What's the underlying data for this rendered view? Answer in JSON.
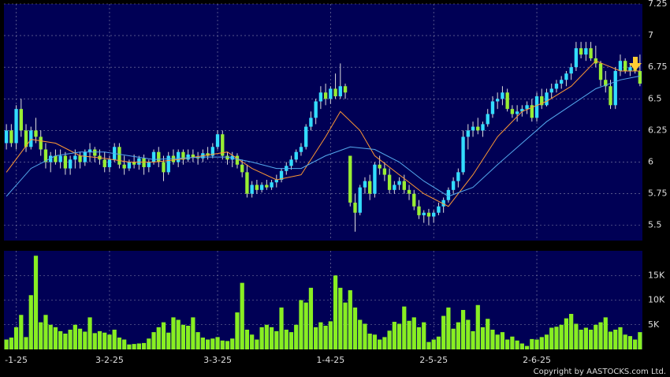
{
  "chart_data": [
    {
      "type": "candlestick",
      "up_color": "#33ddff",
      "down_color": "#99ee33",
      "wick_color": "#dddddd",
      "values": [
        [
          6.15,
          6.3,
          6.1,
          6.25
        ],
        [
          6.25,
          6.3,
          6.12,
          6.15
        ],
        [
          6.15,
          6.45,
          6.1,
          6.42
        ],
        [
          6.42,
          6.5,
          6.2,
          6.25
        ],
        [
          6.25,
          6.3,
          6.08,
          6.12
        ],
        [
          6.12,
          6.28,
          6.1,
          6.25
        ],
        [
          6.25,
          6.35,
          6.15,
          6.2
        ],
        [
          6.2,
          6.25,
          6.05,
          6.1
        ],
        [
          6.1,
          6.15,
          5.95,
          6.0
        ],
        [
          6.0,
          6.08,
          5.92,
          6.05
        ],
        [
          6.05,
          6.1,
          5.98,
          6.0
        ],
        [
          6.0,
          6.1,
          5.95,
          6.05
        ],
        [
          6.05,
          6.08,
          5.9,
          5.95
        ],
        [
          5.95,
          6.05,
          5.9,
          6.02
        ],
        [
          6.02,
          6.1,
          5.95,
          6.05
        ],
        [
          6.05,
          6.08,
          5.95,
          6.0
        ],
        [
          6.0,
          6.1,
          5.97,
          6.08
        ],
        [
          6.08,
          6.15,
          6.0,
          6.1
        ],
        [
          6.1,
          6.12,
          6.0,
          6.05
        ],
        [
          6.05,
          6.1,
          5.98,
          6.02
        ],
        [
          6.02,
          6.08,
          5.92,
          5.96
        ],
        [
          5.96,
          6.05,
          5.92,
          6.02
        ],
        [
          6.02,
          6.15,
          6.0,
          6.12
        ],
        [
          6.12,
          6.15,
          5.95,
          5.98
        ],
        [
          5.98,
          6.05,
          5.9,
          5.95
        ],
        [
          5.95,
          6.02,
          5.93,
          6.0
        ],
        [
          6.0,
          6.06,
          5.95,
          5.98
        ],
        [
          5.98,
          6.05,
          5.94,
          6.03
        ],
        [
          6.03,
          6.06,
          5.9,
          5.96
        ],
        [
          5.96,
          6.02,
          5.92,
          6.0
        ],
        [
          6.0,
          6.1,
          5.98,
          6.08
        ],
        [
          6.08,
          6.12,
          5.96,
          6.0
        ],
        [
          6.0,
          6.05,
          5.85,
          5.92
        ],
        [
          5.92,
          6.08,
          5.9,
          6.05
        ],
        [
          6.05,
          6.1,
          5.98,
          6.0
        ],
        [
          6.0,
          6.1,
          5.96,
          6.08
        ],
        [
          6.08,
          6.1,
          5.98,
          6.02
        ],
        [
          6.02,
          6.1,
          6.0,
          6.06
        ],
        [
          6.06,
          6.1,
          6.0,
          6.04
        ],
        [
          6.04,
          6.08,
          5.98,
          6.03
        ],
        [
          6.03,
          6.1,
          6.0,
          6.07
        ],
        [
          6.07,
          6.12,
          6.02,
          6.05
        ],
        [
          6.05,
          6.15,
          6.03,
          6.12
        ],
        [
          6.12,
          6.25,
          6.1,
          6.22
        ],
        [
          6.22,
          6.25,
          6.02,
          6.05
        ],
        [
          6.05,
          6.08,
          5.98,
          6.02
        ],
        [
          6.02,
          6.08,
          5.96,
          6.05
        ],
        [
          6.05,
          6.07,
          5.95,
          5.98
        ],
        [
          5.98,
          6.02,
          5.88,
          5.92
        ],
        [
          5.92,
          5.98,
          5.72,
          5.75
        ],
        [
          5.75,
          5.85,
          5.72,
          5.82
        ],
        [
          5.82,
          5.86,
          5.75,
          5.78
        ],
        [
          5.78,
          5.84,
          5.76,
          5.82
        ],
        [
          5.82,
          5.86,
          5.78,
          5.8
        ],
        [
          5.8,
          5.86,
          5.78,
          5.84
        ],
        [
          5.84,
          5.9,
          5.8,
          5.86
        ],
        [
          5.86,
          5.95,
          5.84,
          5.93
        ],
        [
          5.93,
          6.0,
          5.9,
          5.97
        ],
        [
          5.97,
          6.05,
          5.94,
          6.02
        ],
        [
          6.02,
          6.1,
          6.0,
          6.08
        ],
        [
          6.08,
          6.15,
          6.05,
          6.12
        ],
        [
          6.12,
          6.3,
          6.1,
          6.28
        ],
        [
          6.28,
          6.4,
          6.25,
          6.35
        ],
        [
          6.35,
          6.5,
          6.3,
          6.48
        ],
        [
          6.48,
          6.6,
          6.42,
          6.55
        ],
        [
          6.55,
          6.62,
          6.45,
          6.5
        ],
        [
          6.5,
          6.6,
          6.46,
          6.58
        ],
        [
          6.58,
          6.7,
          6.5,
          6.52
        ],
        [
          6.52,
          6.78,
          6.5,
          6.6
        ],
        [
          6.6,
          6.62,
          6.5,
          6.55
        ],
        [
          6.05,
          6.05,
          5.65,
          5.68
        ],
        [
          5.68,
          5.75,
          5.45,
          5.6
        ],
        [
          5.6,
          5.82,
          5.58,
          5.8
        ],
        [
          5.8,
          5.88,
          5.75,
          5.85
        ],
        [
          5.85,
          5.9,
          5.7,
          5.75
        ],
        [
          5.75,
          6.0,
          5.72,
          5.98
        ],
        [
          5.98,
          6.05,
          5.9,
          5.95
        ],
        [
          5.95,
          6.0,
          5.85,
          5.9
        ],
        [
          5.9,
          5.95,
          5.75,
          5.78
        ],
        [
          5.78,
          5.85,
          5.75,
          5.82
        ],
        [
          5.82,
          5.88,
          5.78,
          5.85
        ],
        [
          5.85,
          5.9,
          5.75,
          5.78
        ],
        [
          5.78,
          5.82,
          5.7,
          5.75
        ],
        [
          5.75,
          5.78,
          5.62,
          5.65
        ],
        [
          5.65,
          5.7,
          5.55,
          5.58
        ],
        [
          5.58,
          5.62,
          5.52,
          5.6
        ],
        [
          5.6,
          5.63,
          5.5,
          5.57
        ],
        [
          5.57,
          5.62,
          5.52,
          5.6
        ],
        [
          5.6,
          5.68,
          5.58,
          5.65
        ],
        [
          5.65,
          5.72,
          5.6,
          5.7
        ],
        [
          5.7,
          5.8,
          5.68,
          5.78
        ],
        [
          5.78,
          5.88,
          5.75,
          5.85
        ],
        [
          5.85,
          5.95,
          5.8,
          5.92
        ],
        [
          5.92,
          6.25,
          5.9,
          6.2
        ],
        [
          6.2,
          6.3,
          6.1,
          6.25
        ],
        [
          6.25,
          6.32,
          6.2,
          6.28
        ],
        [
          6.28,
          6.35,
          6.22,
          6.25
        ],
        [
          6.25,
          6.32,
          6.2,
          6.3
        ],
        [
          6.3,
          6.42,
          6.28,
          6.38
        ],
        [
          6.38,
          6.52,
          6.35,
          6.48
        ],
        [
          6.48,
          6.55,
          6.42,
          6.5
        ],
        [
          6.5,
          6.6,
          6.45,
          6.55
        ],
        [
          6.55,
          6.58,
          6.4,
          6.42
        ],
        [
          6.42,
          6.45,
          6.35,
          6.38
        ],
        [
          6.38,
          6.45,
          6.32,
          6.4
        ],
        [
          6.4,
          6.45,
          6.36,
          6.42
        ],
        [
          6.42,
          6.48,
          6.38,
          6.45
        ],
        [
          6.45,
          6.5,
          6.32,
          6.35
        ],
        [
          6.35,
          6.55,
          6.32,
          6.52
        ],
        [
          6.52,
          6.58,
          6.42,
          6.45
        ],
        [
          6.45,
          6.58,
          6.44,
          6.55
        ],
        [
          6.55,
          6.62,
          6.5,
          6.58
        ],
        [
          6.58,
          6.65,
          6.55,
          6.62
        ],
        [
          6.62,
          6.68,
          6.58,
          6.65
        ],
        [
          6.65,
          6.72,
          6.6,
          6.7
        ],
        [
          6.7,
          6.78,
          6.65,
          6.75
        ],
        [
          6.75,
          6.95,
          6.72,
          6.9
        ],
        [
          6.9,
          6.95,
          6.82,
          6.85
        ],
        [
          6.85,
          6.95,
          6.8,
          6.9
        ],
        [
          6.9,
          6.95,
          6.8,
          6.82
        ],
        [
          6.82,
          6.92,
          6.75,
          6.78
        ],
        [
          6.78,
          6.8,
          6.6,
          6.65
        ],
        [
          6.65,
          6.72,
          6.55,
          6.6
        ],
        [
          6.6,
          6.65,
          6.42,
          6.45
        ],
        [
          6.45,
          6.75,
          6.42,
          6.72
        ],
        [
          6.72,
          6.85,
          6.68,
          6.8
        ],
        [
          6.8,
          6.82,
          6.7,
          6.72
        ],
        [
          6.72,
          6.78,
          6.68,
          6.75
        ],
        [
          6.75,
          6.8,
          6.7,
          6.72
        ],
        [
          6.72,
          6.85,
          6.6,
          6.62
        ]
      ],
      "series": [
        {
          "color": "#ff9933",
          "x": [
            0,
            5,
            10,
            15,
            20,
            25,
            30,
            35,
            40,
            45,
            50,
            55,
            60,
            65,
            68,
            72,
            75,
            80,
            85,
            90,
            95,
            100,
            105,
            110,
            115,
            120,
            125,
            129
          ],
          "values": [
            5.92,
            6.18,
            6.15,
            6.05,
            6.03,
            6.0,
            6.0,
            6.02,
            6.05,
            6.08,
            5.95,
            5.86,
            5.9,
            6.2,
            6.4,
            6.25,
            6.05,
            5.9,
            5.75,
            5.65,
            5.9,
            6.2,
            6.4,
            6.48,
            6.6,
            6.8,
            6.72,
            6.72
          ]
        },
        {
          "color": "#55aaee",
          "x": [
            0,
            5,
            10,
            15,
            20,
            25,
            30,
            35,
            40,
            45,
            50,
            55,
            60,
            65,
            70,
            75,
            80,
            85,
            90,
            95,
            100,
            105,
            110,
            115,
            120,
            125,
            129
          ],
          "values": [
            5.73,
            5.95,
            6.05,
            6.08,
            6.08,
            6.05,
            6.02,
            6.03,
            6.04,
            6.04,
            6.0,
            5.95,
            5.95,
            6.05,
            6.12,
            6.1,
            6.0,
            5.85,
            5.73,
            5.8,
            5.98,
            6.15,
            6.32,
            6.45,
            6.58,
            6.65,
            6.68
          ]
        }
      ],
      "ylim": [
        5.38,
        7.25
      ],
      "yticks": [
        5.5,
        5.75,
        6,
        6.25,
        6.5,
        6.75,
        7,
        7.25
      ],
      "grid": true
    },
    {
      "type": "bar",
      "color": "#88ee22",
      "categories": [
        null,
        null,
        "-1-25",
        null,
        null,
        null,
        null,
        null,
        null,
        null,
        null,
        null,
        null,
        null,
        null,
        null,
        null,
        null,
        null,
        null,
        null,
        "3-2-25",
        null,
        null,
        null,
        null,
        null,
        null,
        null,
        null,
        null,
        null,
        null,
        null,
        null,
        null,
        null,
        null,
        null,
        null,
        null,
        null,
        null,
        "3-3-25",
        null,
        null,
        null,
        null,
        null,
        null,
        null,
        null,
        null,
        null,
        null,
        null,
        null,
        null,
        null,
        null,
        null,
        null,
        null,
        null,
        null,
        null,
        "1-4-25",
        null,
        null,
        null,
        null,
        null,
        null,
        null,
        null,
        null,
        null,
        null,
        null,
        null,
        null,
        null,
        null,
        null,
        null,
        null,
        null,
        "2-5-25",
        null,
        null,
        null,
        null,
        null,
        null,
        null,
        null,
        null,
        null,
        null,
        null,
        null,
        null,
        null,
        null,
        null,
        null,
        null,
        null,
        "2-6-25",
        null,
        null,
        null,
        null,
        null,
        null,
        null,
        null,
        null,
        null,
        null,
        null,
        null,
        null,
        null,
        null,
        null,
        null,
        null,
        null,
        null
      ],
      "values": [
        2000,
        2400,
        4500,
        7000,
        2500,
        11000,
        19000,
        5500,
        7000,
        5000,
        4500,
        3700,
        3200,
        4000,
        5000,
        4200,
        3600,
        6500,
        3300,
        3700,
        3400,
        3000,
        4000,
        2400,
        2000,
        1000,
        1100,
        1200,
        1300,
        2200,
        3500,
        4500,
        5500,
        3400,
        6500,
        6000,
        5000,
        4800,
        6500,
        3500,
        2400,
        2000,
        2200,
        2500,
        1800,
        1700,
        2200,
        7500,
        13500,
        4000,
        3000,
        2000,
        4500,
        5000,
        4500,
        3700,
        8500,
        4000,
        3500,
        5000,
        10000,
        9500,
        12500,
        4500,
        5500,
        4800,
        5700,
        15000,
        12500,
        9500,
        12000,
        8500,
        6000,
        5200,
        3200,
        3000,
        2000,
        2500,
        3800,
        5600,
        5200,
        8700,
        5800,
        6500,
        4500,
        5500,
        1500,
        2000,
        2600,
        6800,
        8500,
        4200,
        5500,
        8000,
        6000,
        3700,
        9000,
        4500,
        6200,
        4000,
        3000,
        3500,
        2000,
        2600,
        1800,
        1200,
        700,
        2100,
        2000,
        2500,
        3000,
        4400,
        4600,
        5000,
        6300,
        7200,
        5200,
        4000,
        4400,
        4000,
        5000,
        5500,
        6500,
        3600,
        4000,
        4500,
        3000,
        2700,
        2000,
        3500
      ],
      "ylim": [
        0,
        20000
      ],
      "yticks": [
        {
          "value": 5000,
          "label": "5K"
        },
        {
          "value": 10000,
          "label": "10K"
        },
        {
          "value": 15000,
          "label": "15K"
        }
      ],
      "grid": true
    }
  ],
  "copyright": "Copyright by AASTOCKS.com Ltd."
}
